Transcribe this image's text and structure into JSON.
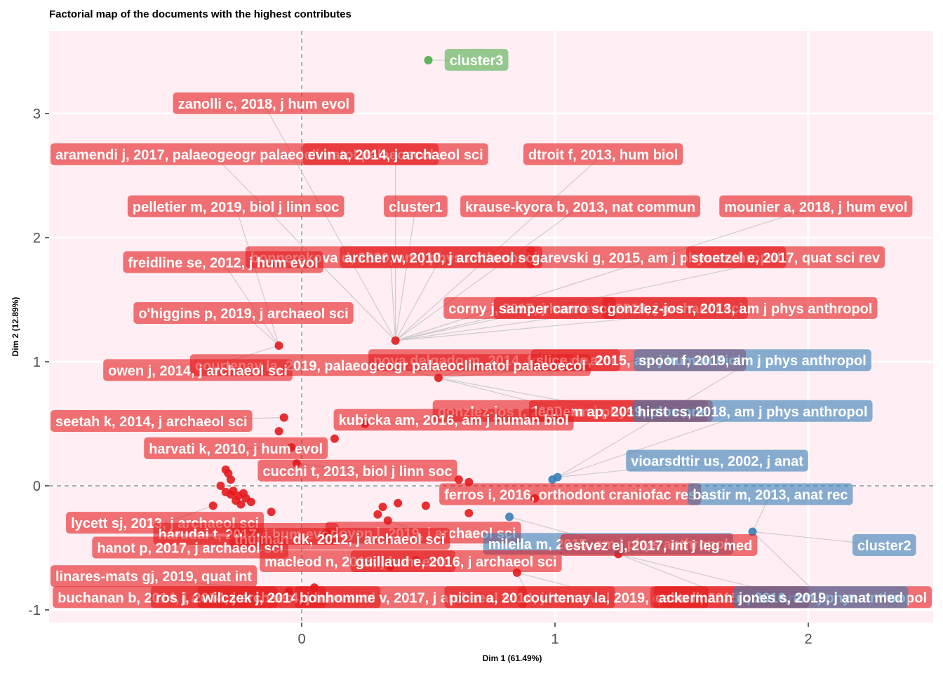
{
  "chart_data": {
    "type": "scatter",
    "title": "Factorial map of the documents with the highest contributes",
    "xlabel": "Dim 1 (61.49%)",
    "ylabel": "Dim 2 (12.89%)",
    "xlim": [
      -1.0,
      2.5
    ],
    "ylim": [
      -1.1,
      3.65
    ],
    "xticks": [
      0,
      1,
      2
    ],
    "yticks": [
      -1,
      0,
      1,
      2,
      3
    ],
    "colors": {
      "cluster1": "#e41a1c",
      "cluster2": "#377eb8",
      "cluster3": "#4daf4a",
      "panel": "#ffeef3"
    },
    "points": {
      "cluster1": [
        [
          -0.09,
          1.13
        ],
        [
          0.37,
          1.17
        ],
        [
          0.54,
          0.87
        ],
        [
          -0.07,
          0.55
        ],
        [
          -0.09,
          0.44
        ],
        [
          -0.04,
          0.31
        ],
        [
          0.13,
          0.38
        ],
        [
          0.25,
          0.5
        ],
        [
          -0.02,
          0.18
        ],
        [
          -0.3,
          0.13
        ],
        [
          -0.29,
          0.1
        ],
        [
          -0.28,
          0.05
        ],
        [
          -0.32,
          0.0
        ],
        [
          -0.3,
          -0.05
        ],
        [
          -0.27,
          -0.04
        ],
        [
          -0.25,
          -0.08
        ],
        [
          -0.22,
          -0.1
        ],
        [
          -0.2,
          -0.13
        ],
        [
          -0.24,
          -0.15
        ],
        [
          -0.35,
          -0.16
        ],
        [
          -0.26,
          -0.12
        ],
        [
          -0.28,
          -0.07
        ],
        [
          -0.23,
          -0.06
        ],
        [
          -0.12,
          -0.21
        ],
        [
          0.3,
          -0.23
        ],
        [
          0.32,
          -0.17
        ],
        [
          0.34,
          -0.28
        ],
        [
          0.38,
          -0.14
        ],
        [
          0.49,
          -0.16
        ],
        [
          0.62,
          0.05
        ],
        [
          0.66,
          0.03
        ],
        [
          0.66,
          -0.22
        ],
        [
          0.92,
          -0.1
        ],
        [
          0.1,
          -0.38
        ],
        [
          0.35,
          -0.65
        ],
        [
          0.45,
          -0.6
        ],
        [
          0.85,
          -0.7
        ],
        [
          1.25,
          -0.55
        ],
        [
          -0.05,
          -0.85
        ],
        [
          0.05,
          -0.82
        ]
      ],
      "cluster2": [
        [
          0.82,
          -0.25
        ],
        [
          0.99,
          0.05
        ],
        [
          1.01,
          0.07
        ],
        [
          1.78,
          -0.37
        ]
      ],
      "cluster3": [
        [
          0.5,
          3.43
        ]
      ]
    },
    "labels": [
      {
        "text": "cluster3",
        "x": 0.69,
        "y": 3.43,
        "cluster": "cluster3"
      },
      {
        "text": "zanolli c, 2018, j hum evol",
        "x": -0.15,
        "y": 3.08,
        "cluster": "cluster1"
      },
      {
        "text": "aramendi j, 2017, palaeogeogr palaeoclimatol palaeoecol",
        "x": -0.35,
        "y": 2.67,
        "cluster": "cluster1"
      },
      {
        "text": "evin a, 2014, j archaeol sci",
        "x": 0.37,
        "y": 2.67,
        "cluster": "cluster1"
      },
      {
        "text": "dtroit f, 2013, hum biol",
        "x": 1.19,
        "y": 2.67,
        "cluster": "cluster1"
      },
      {
        "text": "pelletier m, 2019, biol j linn soc",
        "x": -0.26,
        "y": 2.25,
        "cluster": "cluster1"
      },
      {
        "text": "cluster1",
        "x": 0.45,
        "y": 2.25,
        "cluster": "cluster1"
      },
      {
        "text": "krause-kyora b, 2013, nat commun",
        "x": 1.1,
        "y": 2.25,
        "cluster": "cluster1"
      },
      {
        "text": "mounier a, 2018, j hum evol",
        "x": 2.03,
        "y": 2.25,
        "cluster": "cluster1"
      },
      {
        "text": "bonnerekova d, 2020, am j phys anthropol",
        "x": 0.35,
        "y": 1.84,
        "cluster": "cluster1"
      },
      {
        "text": "archer w, 2010, j archaeol sci",
        "x": 0.55,
        "y": 1.84,
        "cluster": "cluster1"
      },
      {
        "text": "garevski g, 2015, am j phys anthropol",
        "x": 1.4,
        "y": 1.84,
        "cluster": "cluster1"
      },
      {
        "text": "stoetzel e, 2017, quat sci rev",
        "x": 1.91,
        "y": 1.84,
        "cluster": "cluster1"
      },
      {
        "text": "freidline se, 2012, j hum evol",
        "x": -0.31,
        "y": 1.8,
        "cluster": "cluster1"
      },
      {
        "text": "o'higgins p, 2019, j archaeol sci",
        "x": -0.23,
        "y": 1.39,
        "cluster": "cluster1"
      },
      {
        "text": "corny j, 2017, j hum evol",
        "x": 0.9,
        "y": 1.43,
        "cluster": "cluster1"
      },
      {
        "text": "samper carro sc, 2018, j archaeol sci",
        "x": 1.26,
        "y": 1.43,
        "cluster": "cluster1"
      },
      {
        "text": "gonzlez-jos r, 2013, am j phys anthropol",
        "x": 1.73,
        "y": 1.43,
        "cluster": "cluster1"
      },
      {
        "text": "nova delgado m, 2014, folia primatol",
        "x": 0.76,
        "y": 1.01,
        "cluster": "cluster1"
      },
      {
        "text": "slice de, 2015, am j human biol",
        "x": 1.33,
        "y": 1.01,
        "cluster": "cluster1"
      },
      {
        "text": "spoor f, 2019, am j phys anthropol",
        "x": 1.78,
        "y": 1.01,
        "cluster": "cluster2"
      },
      {
        "text": "courtenay la, 2019, palaeogeogr palaeoclimatol palaeoecol",
        "x": 0.35,
        "y": 0.97,
        "cluster": "cluster1"
      },
      {
        "text": "owen j, 2014, j archaeol sci",
        "x": -0.41,
        "y": 0.93,
        "cluster": "cluster1"
      },
      {
        "text": "gonzlez-jos r, 2007, am j phys anthropol",
        "x": 1.06,
        "y": 0.6,
        "cluster": "cluster1"
      },
      {
        "text": "lequem ap, 2019, plos one",
        "x": 1.26,
        "y": 0.6,
        "cluster": "cluster1"
      },
      {
        "text": "hirst cs, 2018, am j phys anthropol",
        "x": 1.78,
        "y": 0.6,
        "cluster": "cluster2"
      },
      {
        "text": "seetah k, 2014, j archaeol sci",
        "x": -0.63,
        "y": 0.52,
        "cluster": "cluster1"
      },
      {
        "text": "kubicka am, 2016, am j human biol",
        "x": 0.6,
        "y": 0.53,
        "cluster": "cluster1"
      },
      {
        "text": "harvati k, 2010, j hum evol",
        "x": -0.26,
        "y": 0.3,
        "cluster": "cluster1"
      },
      {
        "text": "cucchi t, 2013, biol j linn soc",
        "x": 0.22,
        "y": 0.12,
        "cluster": "cluster1"
      },
      {
        "text": "vioarsdttir us, 2002, j anat",
        "x": 1.64,
        "y": 0.2,
        "cluster": "cluster2"
      },
      {
        "text": "ferros i, 2016, orthodont craniofac res",
        "x": 1.06,
        "y": -0.07,
        "cluster": "cluster1"
      },
      {
        "text": "bastir m, 2013, anat rec",
        "x": 1.85,
        "y": -0.07,
        "cluster": "cluster2"
      },
      {
        "text": "lycett sj, 2013, j archaeol sci",
        "x": -0.54,
        "y": -0.3,
        "cluster": "cluster1"
      },
      {
        "text": "harudai t, 2017, j hum evol",
        "x": -0.22,
        "y": -0.39,
        "cluster": "cluster1"
      },
      {
        "text": "doyon l, 2019, j archaeol sci",
        "x": 0.48,
        "y": -0.38,
        "cluster": "cluster1"
      },
      {
        "text": "thulman dk, 2012, j archaeol sci",
        "x": 0.15,
        "y": -0.43,
        "cluster": "cluster1"
      },
      {
        "text": "hanot p, 2017, j archaeol sci",
        "x": -0.44,
        "y": -0.5,
        "cluster": "cluster1"
      },
      {
        "text": "milella m, 2015, am j phys anthropol",
        "x": 1.21,
        "y": -0.47,
        "cluster": "cluster2"
      },
      {
        "text": "estvez ej, 2017, int j leg med",
        "x": 1.41,
        "y": -0.48,
        "cluster": "cluster1"
      },
      {
        "text": "cluster2",
        "x": 2.3,
        "y": -0.48,
        "cluster": "cluster2"
      },
      {
        "text": "macleod n, 2018, j hum evol",
        "x": 0.22,
        "y": -0.61,
        "cluster": "cluster1"
      },
      {
        "text": "guillaud e, 2016, j archaeol sci",
        "x": 0.61,
        "y": -0.61,
        "cluster": "cluster1"
      },
      {
        "text": "linares-mats gj, 2019, quat int",
        "x": -0.71,
        "y": -0.73,
        "cluster": "cluster1"
      },
      {
        "text": "buchanan b, 2014, j archaeol sci",
        "x": -0.54,
        "y": -0.9,
        "cluster": "cluster1"
      },
      {
        "text": "ros j, 2014, j archaeol sci",
        "x": -0.25,
        "y": -0.9,
        "cluster": "cluster1"
      },
      {
        "text": "wilczek j, 2014, j hum evol",
        "x": -0.05,
        "y": -0.9,
        "cluster": "cluster1"
      },
      {
        "text": "bonhomme v, 2017, j archaeol sci",
        "x": 0.43,
        "y": -0.9,
        "cluster": "cluster1"
      },
      {
        "text": "picin a, 2014, j hum evol",
        "x": 0.9,
        "y": -0.9,
        "cluster": "cluster1"
      },
      {
        "text": "courtenay la, 2019, quat int",
        "x": 1.23,
        "y": -0.9,
        "cluster": "cluster1"
      },
      {
        "text": "cabo ll, 2015, plos one",
        "x": 1.69,
        "y": -0.9,
        "cluster": "cluster1"
      },
      {
        "text": "ackermann rr, 2016, am j phys anthropol",
        "x": 1.95,
        "y": -0.9,
        "cluster": "cluster1"
      },
      {
        "text": "jones s, 2019, j anat med",
        "x": 2.05,
        "y": -0.9,
        "cluster": "cluster2"
      }
    ]
  }
}
